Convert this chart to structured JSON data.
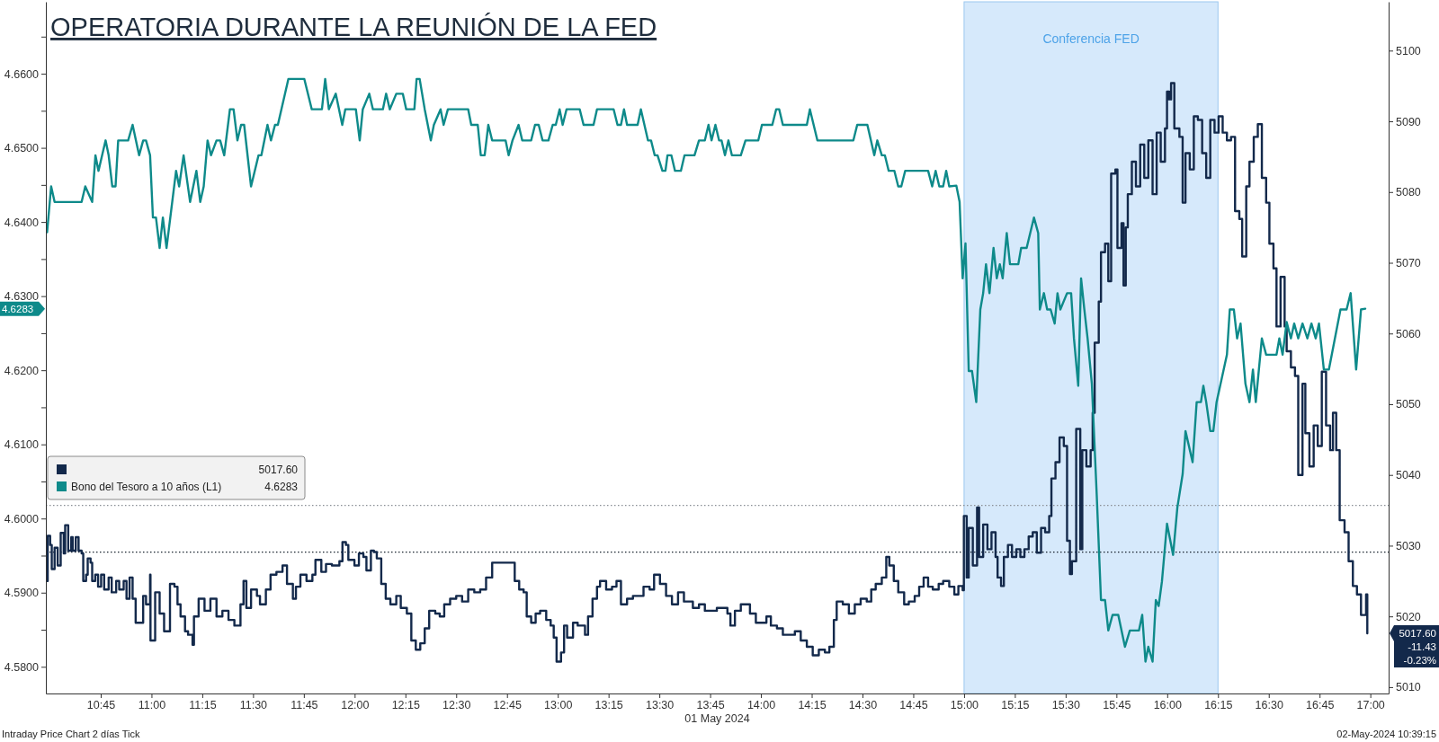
{
  "chart_data": {
    "type": "line",
    "title": "OPERATORIA DURANTE LA REUNIÓN DE LA FED",
    "xlabel": "01 May 2024",
    "xlim": [
      10.48,
      17.09
    ],
    "xticks": [
      {
        "value": 10.75,
        "label": "10:45"
      },
      {
        "value": 11,
        "label": "11:00"
      },
      {
        "value": 11.25,
        "label": "11:15"
      },
      {
        "value": 11.5,
        "label": "11:30"
      },
      {
        "value": 11.75,
        "label": "11:45"
      },
      {
        "value": 12,
        "label": "12:00"
      },
      {
        "value": 12.25,
        "label": "12:15"
      },
      {
        "value": 12.5,
        "label": "12:30"
      },
      {
        "value": 12.75,
        "label": "12:45"
      },
      {
        "value": 13,
        "label": "13:00"
      },
      {
        "value": 13.25,
        "label": "13:15"
      },
      {
        "value": 13.5,
        "label": "13:30"
      },
      {
        "value": 13.75,
        "label": "13:45"
      },
      {
        "value": 14,
        "label": "14:00"
      },
      {
        "value": 14.25,
        "label": "14:15"
      },
      {
        "value": 14.5,
        "label": "14:30"
      },
      {
        "value": 14.75,
        "label": "14:45"
      },
      {
        "value": 15,
        "label": "15:00"
      },
      {
        "value": 15.25,
        "label": "15:15"
      },
      {
        "value": 15.5,
        "label": "15:30"
      },
      {
        "value": 15.75,
        "label": "15:45"
      },
      {
        "value": 16,
        "label": "16:00"
      },
      {
        "value": 16.25,
        "label": "16:15"
      },
      {
        "value": 16.5,
        "label": "16:30"
      },
      {
        "value": 16.75,
        "label": "16:45"
      },
      {
        "value": 17,
        "label": "17:00"
      }
    ],
    "ylim": [
      4.5764,
      4.6697
    ],
    "yticks": [
      {
        "value": 4.58,
        "label": "4.5800"
      },
      {
        "value": 4.585,
        "label": null
      },
      {
        "value": 4.59,
        "label": "4.5900"
      },
      {
        "value": 4.595,
        "label": null
      },
      {
        "value": 4.6,
        "label": "4.6000"
      },
      {
        "value": 4.605,
        "label": null
      },
      {
        "value": 4.61,
        "label": "4.6100"
      },
      {
        "value": 4.615,
        "label": null
      },
      {
        "value": 4.62,
        "label": "4.6200"
      },
      {
        "value": 4.625,
        "label": null
      },
      {
        "value": 4.63,
        "label": "4.6300"
      },
      {
        "value": 4.635,
        "label": null
      },
      {
        "value": 4.64,
        "label": "4.6400"
      },
      {
        "value": 4.645,
        "label": null
      },
      {
        "value": 4.65,
        "label": "4.6500"
      },
      {
        "value": 4.655,
        "label": null
      },
      {
        "value": 4.66,
        "label": "4.6600"
      },
      {
        "value": 4.665,
        "label": null
      }
    ],
    "y2lim": [
      5009.1,
      5106.9
    ],
    "y2ticks": [
      5010,
      5020,
      5030,
      5040,
      5050,
      5060,
      5070,
      5080,
      5090,
      5100
    ],
    "grid": false,
    "legend": "left",
    "marker": "none",
    "bands": [
      {
        "axis": "x",
        "from": 15,
        "to": 16.25,
        "label": "Conferencia FED",
        "color": "#d6e9fb"
      }
    ],
    "ref_lines": [
      {
        "axis": "y2",
        "value": 5035.7,
        "color": "#8a8f96",
        "line_style": "dotted"
      },
      {
        "axis": "y2",
        "value": 5029.1,
        "color": "#1a2430",
        "line_style": "dotted"
      }
    ],
    "annotations": [
      "5017.60",
      "-11.43",
      "-0.23%",
      "4.6283",
      "5017.60",
      "4.6283",
      "Intraday Price Chart 2 días  Tick",
      "02-May-2024 10:39:15"
    ],
    "series": [
      {
        "type": "step",
        "axis": "y2",
        "color": "#13294b",
        "line_style": "solid",
        "x": [
          10.486,
          10.489,
          10.501,
          10.509,
          10.523,
          10.538,
          10.553,
          10.568,
          10.575,
          10.59,
          10.605,
          10.612,
          10.627,
          10.641,
          10.656,
          10.664,
          10.678,
          10.686,
          10.7,
          10.708,
          10.723,
          10.737,
          10.752,
          10.767,
          10.789,
          10.804,
          10.826,
          10.841,
          10.863,
          10.877,
          10.892,
          10.907,
          10.922,
          10.944,
          10.959,
          10.973,
          10.993,
          10.995,
          11.018,
          11.04,
          11.062,
          11.077,
          11.091,
          11.113,
          11.128,
          11.143,
          11.165,
          11.18,
          11.202,
          11.209,
          11.232,
          11.261,
          11.29,
          11.32,
          11.349,
          11.379,
          11.408,
          11.438,
          11.453,
          11.467,
          11.49,
          11.519,
          11.534,
          11.563,
          11.586,
          11.615,
          11.645,
          11.667,
          11.696,
          11.711,
          11.733,
          11.763,
          11.792,
          11.807,
          11.836,
          11.859,
          11.888,
          11.925,
          11.94,
          11.957,
          11.969,
          11.999,
          12.021,
          12.043,
          12.058,
          12.08,
          12.095,
          12.109,
          12.131,
          12.153,
          12.176,
          12.205,
          12.227,
          12.257,
          12.279,
          12.301,
          12.323,
          12.345,
          12.367,
          12.397,
          12.419,
          12.441,
          12.47,
          12.5,
          12.529,
          12.559,
          12.589,
          12.618,
          12.647,
          12.677,
          12.707,
          12.788,
          12.81,
          12.832,
          12.847,
          12.869,
          12.891,
          12.913,
          12.943,
          12.965,
          12.98,
          12.994,
          13.016,
          13.031,
          13.046,
          13.075,
          13.098,
          13.12,
          13.134,
          13.149,
          13.171,
          13.193,
          13.208,
          13.238,
          13.267,
          13.289,
          13.311,
          13.341,
          13.37,
          13.4,
          13.422,
          13.452,
          13.474,
          13.503,
          13.533,
          13.562,
          13.592,
          13.621,
          13.665,
          13.695,
          13.724,
          13.754,
          13.783,
          13.813,
          13.835,
          13.85,
          13.872,
          13.901,
          13.924,
          13.946,
          13.975,
          14.005,
          14.027,
          14.049,
          14.079,
          14.108,
          14.138,
          14.167,
          14.196,
          14.226,
          14.255,
          14.285,
          14.315,
          14.337,
          14.359,
          14.373,
          14.403,
          14.433,
          14.462,
          14.491,
          14.521,
          14.543,
          14.565,
          14.595,
          14.617,
          14.632,
          14.654,
          14.676,
          14.705,
          14.728,
          14.757,
          14.779,
          14.801,
          14.823,
          14.846,
          14.875,
          14.897,
          14.927,
          14.952,
          14.972,
          14.993,
          14.999,
          15.013,
          15.023,
          15.043,
          15.064,
          15.074,
          15.094,
          15.115,
          15.135,
          15.155,
          15.165,
          15.182,
          15.196,
          15.216,
          15.236,
          15.257,
          15.277,
          15.297,
          15.318,
          15.338,
          15.358,
          15.379,
          15.399,
          15.419,
          15.43,
          15.45,
          15.47,
          15.491,
          15.507,
          15.521,
          15.531,
          15.552,
          15.572,
          15.582,
          15.602,
          15.623,
          15.633,
          15.643,
          15.663,
          15.674,
          15.694,
          15.71,
          15.724,
          15.745,
          15.755,
          15.775,
          15.785,
          15.796,
          15.806,
          15.826,
          15.846,
          15.867,
          15.887,
          15.907,
          15.928,
          15.948,
          15.968,
          15.989,
          15.999,
          16.009,
          16.019,
          16.035,
          16.06,
          16.076,
          16.09,
          16.111,
          16.131,
          16.151,
          16.172,
          16.192,
          16.212,
          16.233,
          16.253,
          16.273,
          16.294,
          16.314,
          16.334,
          16.355,
          16.369,
          16.389,
          16.405,
          16.426,
          16.446,
          16.466,
          16.487,
          16.503,
          16.523,
          16.538,
          16.558,
          16.578,
          16.588,
          16.609,
          16.629,
          16.645,
          16.666,
          16.68,
          16.7,
          16.721,
          16.741,
          16.761,
          16.782,
          16.802,
          16.816,
          16.832,
          16.849,
          16.873,
          16.893,
          16.914,
          16.934,
          16.954,
          16.979,
          16.985
        ],
        "values": [
          5025.0,
          5031.4,
          5030.1,
          5026.7,
          5029.7,
          5027.2,
          5031.8,
          5028.9,
          5032.9,
          5029.3,
          5031.2,
          5029.3,
          5031.2,
          5029.3,
          5028.9,
          5025.0,
          5025.9,
          5028.2,
          5027.6,
          5025.0,
          5025.9,
          5024.2,
          5025.9,
          5023.8,
          5025.5,
          5023.4,
          5025.0,
          5023.8,
          5025.0,
          5022.5,
          5025.5,
          5022.5,
          5019.1,
          5019.1,
          5022.9,
          5021.7,
          5025.9,
          5016.6,
          5023.4,
          5020.4,
          5017.9,
          5017.9,
          5024.6,
          5024.2,
          5021.7,
          5020.0,
          5017.9,
          5017.4,
          5016.0,
          5020.0,
          5022.5,
          5020.8,
          5022.5,
          5020.0,
          5020.8,
          5019.5,
          5018.7,
          5021.7,
          5025.0,
          5021.2,
          5023.8,
          5022.9,
          5021.7,
          5023.8,
          5025.9,
          5026.3,
          5027.2,
          5024.6,
          5022.5,
          5024.2,
          5025.9,
          5025.0,
          5025.9,
          5028.0,
          5026.3,
          5027.4,
          5027.2,
          5027.8,
          5030.5,
          5030.1,
          5028.0,
          5027.2,
          5028.9,
          5028.4,
          5026.5,
          5029.3,
          5029.1,
          5028.2,
          5024.6,
          5022.5,
          5021.7,
          5022.9,
          5021.2,
          5020.4,
          5016.6,
          5015.3,
          5016.2,
          5018.3,
          5020.8,
          5020.4,
          5020.0,
          5021.7,
          5022.5,
          5022.9,
          5022.1,
          5023.8,
          5023.4,
          5023.8,
          5025.5,
          5027.6,
          5027.6,
          5025.0,
          5023.8,
          5023.4,
          5020.0,
          5019.1,
          5020.4,
          5020.8,
          5019.5,
          5018.7,
          5017.0,
          5013.6,
          5014.9,
          5018.7,
          5017.0,
          5019.1,
          5018.7,
          5018.7,
          5017.4,
          5020.0,
          5022.5,
          5024.2,
          5025.0,
          5023.8,
          5024.2,
          5025.0,
          5021.7,
          5022.5,
          5022.9,
          5022.9,
          5024.2,
          5023.8,
          5025.9,
          5024.6,
          5022.9,
          5021.7,
          5023.4,
          5022.1,
          5021.2,
          5021.7,
          5020.8,
          5020.8,
          5021.2,
          5021.2,
          5020.4,
          5018.7,
          5020.8,
          5021.7,
          5021.7,
          5020.4,
          5019.1,
          5019.1,
          5020.0,
          5018.7,
          5018.3,
          5017.4,
          5017.4,
          5017.9,
          5016.6,
          5015.7,
          5014.5,
          5015.3,
          5014.9,
          5015.7,
          5019.5,
          5022.1,
          5021.7,
          5020.4,
          5021.7,
          5022.5,
          5022.1,
          5023.8,
          5024.6,
          5025.5,
          5028.4,
          5027.2,
          5025.0,
          5023.4,
          5021.7,
          5022.1,
          5022.9,
          5024.2,
          5025.5,
          5024.2,
          5023.8,
          5024.6,
          5025.0,
          5024.2,
          5023.1,
          5024.3,
          5023.7,
          5034.2,
          5025.5,
          5032.5,
          5027.2,
          5035.4,
          5028.4,
          5033.0,
          5029.5,
          5031.9,
          5028.4,
          5025.5,
          5024.3,
          5028.4,
          5030.1,
          5028.4,
          5029.5,
          5028.4,
          5029.5,
          5031.3,
          5031.9,
          5029.0,
          5032.5,
          5031.9,
          5034.2,
          5039.5,
          5041.8,
          5045.3,
          5044.1,
          5030.7,
          5026.0,
          5027.8,
          5046.5,
          5029.5,
          5043.5,
          5041.2,
          5043.5,
          5048.8,
          5058.7,
          5064.5,
          5071.5,
          5072.7,
          5067.4,
          5082.6,
          5083.2,
          5072.1,
          5075.6,
          5066.8,
          5075.0,
          5079.7,
          5084.3,
          5080.8,
          5086.7,
          5082.0,
          5087.3,
          5079.7,
          5088.4,
          5084.3,
          5089.0,
          5094.2,
          5093.1,
          5095.4,
          5089.0,
          5087.8,
          5078.5,
          5085.5,
          5083.2,
          5090.7,
          5090.2,
          5085.5,
          5082.0,
          5090.2,
          5088.4,
          5090.7,
          5088.4,
          5087.3,
          5087.8,
          5077.3,
          5076.2,
          5070.9,
          5080.8,
          5084.3,
          5087.8,
          5089.6,
          5082.0,
          5078.5,
          5072.7,
          5069.2,
          5061.0,
          5068.0,
          5061.0,
          5057.5,
          5055.2,
          5054.0,
          5040.0,
          5052.9,
          5045.9,
          5041.2,
          5047.0,
          5044.1,
          5054.6,
          5047.0,
          5043.5,
          5048.8,
          5043.5,
          5033.6,
          5031.9,
          5027.8,
          5024.3,
          5023.1,
          5020.2,
          5023.1,
          5017.6
        ]
      },
      {
        "type": "line",
        "name": "Bono del Tesoro a 10 años (L1)",
        "color": "#0e8a8a",
        "line_style": "solid",
        "x": [
          10.486,
          10.506,
          10.523,
          10.656,
          10.674,
          10.708,
          10.724,
          10.739,
          10.774,
          10.789,
          10.807,
          10.823,
          10.836,
          10.885,
          10.907,
          10.939,
          10.959,
          10.973,
          10.993,
          11.007,
          11.022,
          11.04,
          11.056,
          11.074,
          11.121,
          11.136,
          11.158,
          11.19,
          11.221,
          11.24,
          11.257,
          11.276,
          11.293,
          11.32,
          11.338,
          11.358,
          11.386,
          11.404,
          11.423,
          11.441,
          11.456,
          11.49,
          11.527,
          11.541,
          11.571,
          11.588,
          11.608,
          11.622,
          11.674,
          11.752,
          11.789,
          11.839,
          11.855,
          11.873,
          11.907,
          11.939,
          11.954,
          12.006,
          12.025,
          12.04,
          12.072,
          12.09,
          12.139,
          12.155,
          12.173,
          12.205,
          12.237,
          12.254,
          12.294,
          12.305,
          12.32,
          12.345,
          12.375,
          12.39,
          12.423,
          12.438,
          12.459,
          12.559,
          12.574,
          12.606,
          12.621,
          12.64,
          12.658,
          12.677,
          12.743,
          12.758,
          12.777,
          12.807,
          12.825,
          12.869,
          12.888,
          12.906,
          12.925,
          12.954,
          12.975,
          12.99,
          13.009,
          13.024,
          13.043,
          13.108,
          13.127,
          13.176,
          13.193,
          13.275,
          13.294,
          13.311,
          13.326,
          13.341,
          13.393,
          13.409,
          13.444,
          13.459,
          13.477,
          13.491,
          13.515,
          13.53,
          13.54,
          13.559,
          13.577,
          13.606,
          13.624,
          13.673,
          13.695,
          13.724,
          13.742,
          13.757,
          13.776,
          13.794,
          13.806,
          13.823,
          13.84,
          13.857,
          13.901,
          13.924,
          13.987,
          14.005,
          14.056,
          14.075,
          14.09,
          14.108,
          14.226,
          14.241,
          14.278,
          14.455,
          14.474,
          14.524,
          14.558,
          14.573,
          14.595,
          14.61,
          14.629,
          14.657,
          14.676,
          14.691,
          14.71,
          14.823,
          14.843,
          14.86,
          14.878,
          14.897,
          14.912,
          14.927,
          14.962,
          14.978,
          14.993,
          15.007,
          15.023,
          15.039,
          15.06,
          15.08,
          15.094,
          15.108,
          15.125,
          15.145,
          15.161,
          15.176,
          15.19,
          15.21,
          15.226,
          15.267,
          15.281,
          15.308,
          15.344,
          15.365,
          15.373,
          15.393,
          15.409,
          15.426,
          15.446,
          15.46,
          15.474,
          15.507,
          15.527,
          15.541,
          15.562,
          15.576,
          15.592,
          15.608,
          15.629,
          15.653,
          15.674,
          15.694,
          15.71,
          15.731,
          15.759,
          15.792,
          15.816,
          15.861,
          15.877,
          15.893,
          15.907,
          15.928,
          15.944,
          15.958,
          15.974,
          15.999,
          16.029,
          16.05,
          16.076,
          16.09,
          16.125,
          16.145,
          16.166,
          16.178,
          16.192,
          16.212,
          16.227,
          16.243,
          16.294,
          16.308,
          16.328,
          16.344,
          16.361,
          16.385,
          16.405,
          16.422,
          16.436,
          16.466,
          16.487,
          16.538,
          16.552,
          16.568,
          16.588,
          16.609,
          16.625,
          16.645,
          16.666,
          16.69,
          16.71,
          16.731,
          16.747,
          16.771,
          16.796,
          16.853,
          16.883,
          16.903,
          16.93,
          16.954,
          16.975
        ],
        "values": [
          4.6386,
          4.6448,
          4.6427,
          4.6427,
          4.6448,
          4.6427,
          4.649,
          4.6469,
          4.651,
          4.649,
          4.6448,
          4.6448,
          4.651,
          4.651,
          4.6531,
          4.649,
          4.651,
          4.651,
          4.649,
          4.6406,
          4.6406,
          4.6365,
          4.6406,
          4.6365,
          4.6469,
          4.6448,
          4.649,
          4.6427,
          4.6469,
          4.6427,
          4.6448,
          4.651,
          4.649,
          4.651,
          4.651,
          4.649,
          4.6552,
          4.6552,
          4.651,
          4.6531,
          4.6531,
          4.6448,
          4.649,
          4.649,
          4.6531,
          4.651,
          4.6531,
          4.6531,
          4.6593,
          4.6593,
          4.6552,
          4.6552,
          4.6593,
          4.6552,
          4.6573,
          4.6531,
          4.6552,
          4.6552,
          4.651,
          4.6552,
          4.6573,
          4.6552,
          4.6552,
          4.6573,
          4.6552,
          4.6573,
          4.6573,
          4.6552,
          4.6552,
          4.6593,
          4.6593,
          4.6552,
          4.651,
          4.6531,
          4.6552,
          4.6531,
          4.6552,
          4.6552,
          4.6531,
          4.6531,
          4.649,
          4.649,
          4.6531,
          4.651,
          4.651,
          4.649,
          4.651,
          4.6531,
          4.651,
          4.651,
          4.6531,
          4.6531,
          4.651,
          4.651,
          4.6531,
          4.6531,
          4.6552,
          4.6531,
          4.6552,
          4.6552,
          4.6531,
          4.6531,
          4.6552,
          4.6552,
          4.6531,
          4.6531,
          4.6552,
          4.6531,
          4.6531,
          4.6552,
          4.651,
          4.651,
          4.649,
          4.649,
          4.6469,
          4.6469,
          4.649,
          4.649,
          4.6469,
          4.6469,
          4.649,
          4.649,
          4.651,
          4.651,
          4.6531,
          4.651,
          4.6531,
          4.651,
          4.651,
          4.649,
          4.651,
          4.649,
          4.649,
          4.651,
          4.651,
          4.6531,
          4.6531,
          4.6552,
          4.6552,
          4.6531,
          4.6531,
          4.6552,
          4.651,
          4.651,
          4.6531,
          4.6531,
          4.649,
          4.651,
          4.649,
          4.649,
          4.6469,
          4.6469,
          4.6448,
          4.6448,
          4.6469,
          4.6469,
          4.6448,
          4.6469,
          4.6448,
          4.6448,
          4.6469,
          4.6448,
          4.6449,
          4.6427,
          4.6324,
          4.6371,
          4.6199,
          4.6199,
          4.6157,
          4.6282,
          4.6304,
          4.6343,
          4.6304,
          4.6365,
          4.6324,
          4.6343,
          4.6324,
          4.6385,
          4.6343,
          4.6343,
          4.6365,
          4.6365,
          4.6406,
          4.6385,
          4.6282,
          4.6304,
          4.6282,
          4.6282,
          4.6263,
          4.6304,
          4.6282,
          4.6304,
          4.6304,
          4.6243,
          4.6179,
          4.6324,
          4.6282,
          4.6243,
          4.6182,
          4.6032,
          4.589,
          4.589,
          4.5849,
          4.587,
          4.587,
          4.5827,
          4.5849,
          4.5849,
          4.587,
          4.5807,
          4.5827,
          4.5807,
          4.589,
          4.5882,
          4.5915,
          4.5993,
          4.5951,
          4.6015,
          4.606,
          4.6118,
          4.6076,
          4.6157,
          4.6157,
          4.6179,
          4.6157,
          4.6118,
          4.6118,
          4.6157,
          4.6221,
          4.6282,
          4.6282,
          4.6243,
          4.6263,
          4.6182,
          4.6157,
          4.6201,
          4.6157,
          4.6243,
          4.6221,
          4.6221,
          4.6243,
          4.6221,
          4.6265,
          4.6243,
          4.6263,
          4.6243,
          4.6263,
          4.6243,
          4.6263,
          4.6243,
          4.6263,
          4.6201,
          4.6201,
          4.6282,
          4.6282,
          4.6304,
          4.6201,
          4.6282,
          4.6283
        ]
      }
    ]
  }
}
